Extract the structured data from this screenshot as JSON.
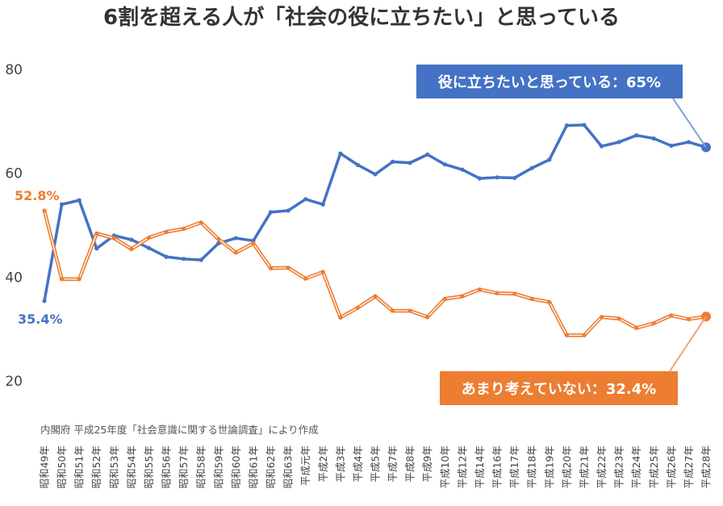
{
  "chart_data": {
    "type": "line",
    "title": "6割を超える人が「社会の役に立ちたい」と思っている",
    "source": "内閣府 平成25年度「社会意識に関する世論調査」により作成",
    "ylim": [
      20,
      80
    ],
    "yticks": [
      20,
      40,
      60,
      80
    ],
    "grid": false,
    "categories": [
      "昭和49年",
      "昭和50年",
      "昭和51年",
      "昭和52年",
      "昭和53年",
      "昭和54年",
      "昭和55年",
      "昭和56年",
      "昭和57年",
      "昭和58年",
      "昭和59年",
      "昭和60年",
      "昭和61年",
      "昭和62年",
      "昭和63年",
      "平成元年",
      "平成2年",
      "平成3年",
      "平成4年",
      "平成5年",
      "平成7年",
      "平成8年",
      "平成9年",
      "平成10年",
      "平成12年",
      "平成14年",
      "平成16年",
      "平成17年",
      "平成18年",
      "平成19年",
      "平成20年",
      "平成21年",
      "平成22年",
      "平成23年",
      "平成24年",
      "平成25年",
      "平成26年",
      "平成27年",
      "平成28年"
    ],
    "series": [
      {
        "name": "役に立ちたい",
        "color": "#4472C4",
        "values": [
          35.4,
          54.0,
          54.8,
          45.5,
          48.0,
          47.2,
          45.6,
          43.9,
          43.5,
          43.3,
          46.5,
          47.5,
          47.0,
          52.5,
          52.8,
          55.0,
          54.0,
          63.8,
          61.6,
          59.8,
          62.2,
          62.0,
          63.6,
          61.7,
          60.7,
          59.0,
          59.2,
          59.1,
          61.0,
          62.6,
          69.2,
          69.3,
          65.2,
          66.0,
          67.3,
          66.7,
          65.3,
          66.0,
          65.0
        ]
      },
      {
        "name": "あまり考えていない",
        "color": "#ED7D31",
        "values": [
          52.8,
          39.6,
          39.6,
          48.4,
          47.5,
          45.4,
          47.6,
          48.7,
          49.3,
          50.5,
          47.3,
          44.7,
          46.5,
          41.7,
          41.8,
          39.7,
          41.0,
          32.2,
          34.1,
          36.3,
          33.5,
          33.5,
          32.3,
          35.8,
          36.3,
          37.6,
          36.9,
          36.8,
          35.8,
          35.2,
          28.8,
          28.8,
          32.3,
          32.0,
          30.2,
          31.1,
          32.6,
          31.9,
          32.4
        ]
      }
    ],
    "start_labels": [
      "35.4%",
      "52.8%"
    ],
    "callouts": [
      "役に立ちたいと思っている：65%",
      "あまり考えていない：32.4%"
    ]
  }
}
